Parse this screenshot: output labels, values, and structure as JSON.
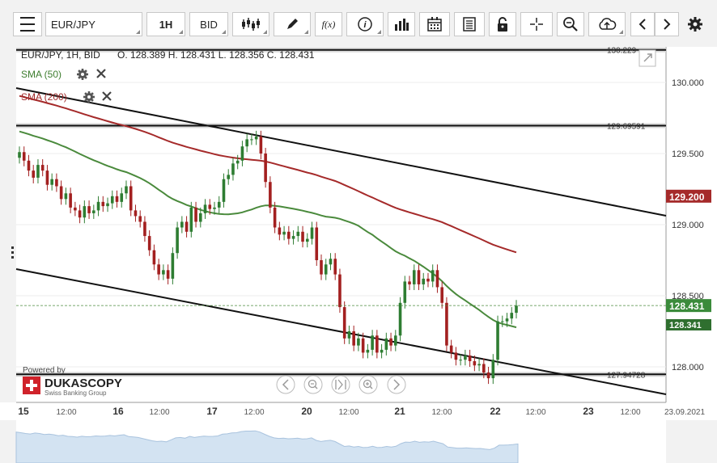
{
  "toolbar": {
    "symbol": "EUR/JPY",
    "timeframe": "1H",
    "side": "BID",
    "icons": [
      "menu-icon",
      "candles-icon",
      "pencil-icon",
      "function-icon",
      "info-icon",
      "volume-bars-icon",
      "calendar-icon",
      "document-icon",
      "lock-icon",
      "crosshair-icon",
      "zoom-icon",
      "cloud-upload-icon",
      "chevron-left-icon",
      "chevron-right-icon",
      "gear-icon"
    ],
    "fx_label": "f(x)",
    "info_label": "i"
  },
  "header": {
    "title": "EUR/JPY, 1H, BID",
    "ohlc": "O. 128.389 H. 128.431 L. 128.356 C. 128.431"
  },
  "indicators": [
    {
      "label": "SMA (50)",
      "color": "#3d7d2e"
    },
    {
      "label": "SMA (200)",
      "color": "#a02a2a"
    }
  ],
  "brand": {
    "powered_by": "Powered by",
    "name": "DUKASCOPY",
    "tagline": "Swiss Banking Group"
  },
  "colors": {
    "up": "#2e7d32",
    "down": "#a32020",
    "sma50": "#4a8a3c",
    "sma200": "#a52a2a",
    "current_price_bg": "#3b8b3b",
    "sma200_tag_bg": "#a52a2a"
  },
  "chart_data": {
    "type": "candlestick",
    "symbol": "EUR/JPY",
    "timeframe": "1H",
    "ylim": [
      127.75,
      130.25
    ],
    "y_ticks": [
      128.0,
      128.5,
      129.0,
      129.5,
      130.0
    ],
    "y_tick_labels": [
      "128.000",
      "128.500",
      "129.000",
      "129.500",
      "130.000"
    ],
    "x_tick_labels": [
      "15",
      "12:00",
      "16",
      "12:00",
      "17",
      "12:00",
      "20",
      "12:00",
      "21",
      "12:00",
      "22",
      "12:00",
      "23",
      "12:00",
      "23.09.2021"
    ],
    "horizontal_levels": [
      {
        "value": 130.229,
        "label": "130.229"
      },
      {
        "value": 129.69591,
        "label": "129.69591"
      },
      {
        "value": 127.94728,
        "label": "127.94728"
      }
    ],
    "current_price": {
      "value": 128.431,
      "label": "128.431"
    },
    "sma50_last": {
      "value": 128.341,
      "label": "128.341"
    },
    "sma200_last": {
      "value": 129.2,
      "label": "129.200"
    },
    "closes": [
      129.51,
      129.45,
      129.38,
      129.33,
      129.42,
      129.38,
      129.28,
      129.32,
      129.27,
      129.18,
      129.22,
      129.12,
      129.1,
      129.05,
      129.13,
      129.08,
      129.1,
      129.16,
      129.13,
      129.15,
      129.2,
      129.16,
      129.22,
      129.27,
      129.1,
      129.06,
      129.02,
      128.92,
      128.82,
      128.72,
      128.65,
      128.68,
      128.62,
      128.8,
      128.98,
      129.02,
      128.95,
      129.12,
      129.02,
      129.08,
      129.14,
      129.11,
      129.12,
      129.16,
      129.32,
      129.35,
      129.43,
      129.45,
      129.55,
      129.6,
      129.6,
      129.62,
      129.5,
      129.3,
      129.12,
      128.98,
      128.93,
      128.95,
      128.9,
      128.92,
      128.95,
      128.88,
      128.9,
      128.98,
      128.75,
      128.65,
      128.72,
      128.76,
      128.65,
      128.42,
      128.2,
      128.25,
      128.15,
      128.2,
      128.1,
      128.12,
      128.22,
      128.1,
      128.12,
      128.2,
      128.15,
      128.22,
      128.45,
      128.6,
      128.58,
      128.68,
      128.58,
      128.62,
      128.6,
      128.68,
      128.56,
      128.45,
      128.15,
      128.1,
      128.05,
      128.05,
      128.08,
      128.04,
      128.01,
      128.02,
      127.96,
      127.92,
      128.05,
      128.32,
      128.32,
      128.34,
      128.38,
      128.43
    ]
  }
}
